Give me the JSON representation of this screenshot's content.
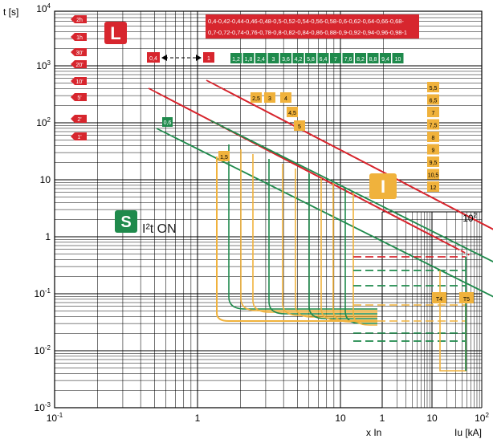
{
  "chart_data": {
    "type": "line",
    "title": "",
    "xlabel": "x In",
    "ylabel": "t [s]",
    "xlabel_right": "Iu [kA]",
    "x_scale": "log",
    "y_scale": "log",
    "xlim": [
      0.1,
      20
    ],
    "ylim": [
      0.001,
      10000
    ],
    "grid": true,
    "x_ticks": [
      {
        "value": 0.1,
        "label": "10-1"
      },
      {
        "value": 1,
        "label": "1"
      },
      {
        "value": 10,
        "label": "10"
      }
    ],
    "y_ticks": [
      {
        "value": 10000,
        "label": "10^4"
      },
      {
        "value": 1000,
        "label": "10^3"
      },
      {
        "value": 100,
        "label": "10^2"
      },
      {
        "value": 10,
        "label": "10"
      },
      {
        "value": 1,
        "label": "1"
      },
      {
        "value": 0.1,
        "label": "10^-1"
      },
      {
        "value": 0.01,
        "label": "10^-2"
      },
      {
        "value": 0.001,
        "label": "10^-3"
      }
    ],
    "right_axis_ticks": [
      {
        "value": 1,
        "label": "1"
      },
      {
        "value": 10,
        "label": "10"
      },
      {
        "value": 100,
        "label": "10^2"
      }
    ],
    "colors": {
      "L": "#d7262e",
      "S": "#1f8a4c",
      "I": "#f0b23c"
    },
    "functions": {
      "L": {
        "label": "L",
        "settings_text": [
          "0,4-0,42-0,44-0,46-0,48-0,5-0,52-0,54-0,56-0,58-0,6-0,62-0,64-0,66-0,68-",
          "0,7-0,72-0,74-0,76-0,78-0,8-0,82-0,84-0,86-0,88-0,9-0,92-0,94-0,96-0,98-1"
        ],
        "range_start": "0,4",
        "range_end": "1"
      },
      "S": {
        "label": "S",
        "i2t_label": "I²t ON",
        "thresholds": [
          "0,6",
          "1,2",
          "1,8",
          "2,4",
          "3",
          "3,6",
          "4,2",
          "5,8",
          "6,4",
          "7",
          "7,6",
          "8,2",
          "8,8",
          "9,4",
          "10"
        ]
      },
      "I": {
        "label": "I",
        "thresholds": [
          "1,5",
          "2,5",
          "3",
          "4",
          "4,5",
          "5",
          "5,5",
          "6,5",
          "7",
          "7,5",
          "8",
          "9",
          "9,5",
          "10,5",
          "12"
        ]
      }
    },
    "time_tags": [
      "2h",
      "1h",
      "30'",
      "20'",
      "10'",
      "5'",
      "2'",
      "1'"
    ],
    "breaker_tags": [
      "T4",
      "T5"
    ],
    "series": []
  }
}
